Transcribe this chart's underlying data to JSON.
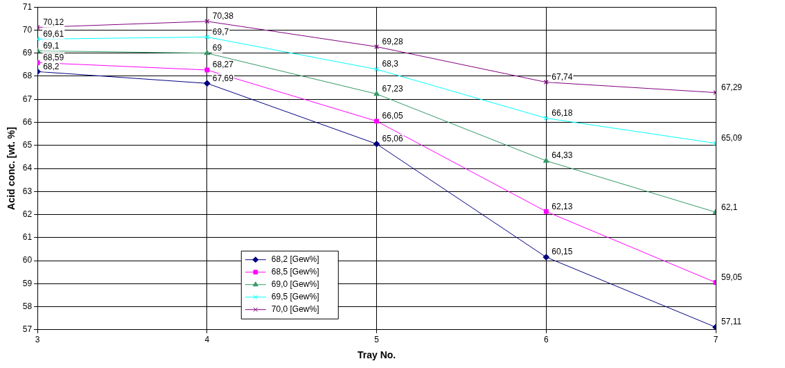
{
  "chart_data": {
    "type": "line",
    "xlabel": "Tray No.",
    "ylabel": "Acid conc. [wt. %]",
    "x": [
      3,
      4,
      5,
      6,
      7
    ],
    "xlim": [
      3,
      7
    ],
    "xticks": [
      3,
      4,
      5,
      6,
      7
    ],
    "ylim": [
      57,
      71
    ],
    "yticks": [
      57,
      58,
      59,
      60,
      61,
      62,
      63,
      64,
      65,
      66,
      67,
      68,
      69,
      70,
      71
    ],
    "grid": true,
    "legend": "bottom left",
    "line_style": "solid",
    "series": [
      {
        "name": "68,2 [Gew%]",
        "color": "#000080",
        "marker": "diamond",
        "values": [
          68.2,
          67.69,
          65.06,
          60.15,
          57.11
        ],
        "value_labels": [
          "68,2",
          "67,69",
          "65,06",
          "60,15",
          "57,11"
        ]
      },
      {
        "name": "68,5 [Gew%]",
        "color": "#ff00ff",
        "marker": "square",
        "values": [
          68.59,
          68.27,
          66.05,
          62.13,
          59.05
        ],
        "value_labels": [
          "68,59",
          "68,27",
          "66,05",
          "62,13",
          "59,05"
        ]
      },
      {
        "name": "69,0 [Gew%]",
        "color": "#339966",
        "marker": "triangle",
        "values": [
          69.1,
          69,
          67.23,
          64.33,
          62.1
        ],
        "value_labels": [
          "69,1",
          "69",
          "67,23",
          "64,33",
          "62,1"
        ]
      },
      {
        "name": "69,5 [Gew%]",
        "color": "#00ffff",
        "marker": "cross",
        "values": [
          69.61,
          69.7,
          68.3,
          66.18,
          65.09
        ],
        "value_labels": [
          "69,61",
          "69,7",
          "68,3",
          "66,18",
          "65,09"
        ]
      },
      {
        "name": "70,0 [Gew%]",
        "color": "#800080",
        "marker": "cross",
        "values": [
          70.12,
          70.38,
          69.28,
          67.74,
          67.29
        ],
        "value_labels": [
          "70,12",
          "70,38",
          "69,28",
          "67,74",
          "67,29"
        ]
      }
    ]
  }
}
